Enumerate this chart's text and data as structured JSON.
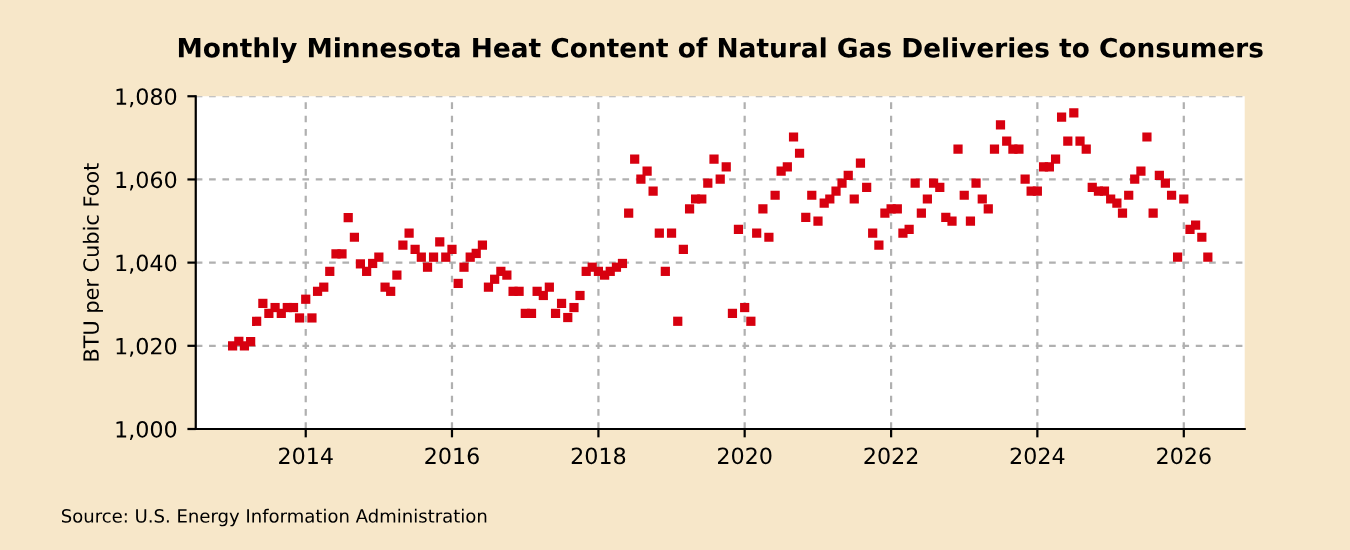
{
  "chart_data": {
    "type": "scatter",
    "title": "Monthly Minnesota Heat Content of Natural Gas Deliveries to Consumers",
    "ylabel": "BTU per Cubic Foot",
    "annotations": [
      "Source: U.S. Energy Information Administration"
    ],
    "x": [
      "2013-01",
      "2013-02",
      "2013-03",
      "2013-04",
      "2013-05",
      "2013-06",
      "2013-07",
      "2013-08",
      "2013-09",
      "2013-10",
      "2013-11",
      "2013-12",
      "2014-01",
      "2014-02",
      "2014-03",
      "2014-04",
      "2014-05",
      "2014-06",
      "2014-07",
      "2014-08",
      "2014-09",
      "2014-10",
      "2014-11",
      "2014-12",
      "2015-01",
      "2015-02",
      "2015-03",
      "2015-04",
      "2015-05",
      "2015-06",
      "2015-07",
      "2015-08",
      "2015-09",
      "2015-10",
      "2015-11",
      "2015-12",
      "2016-01",
      "2016-02",
      "2016-03",
      "2016-04",
      "2016-05",
      "2016-06",
      "2016-07",
      "2016-08",
      "2016-09",
      "2016-10",
      "2016-11",
      "2016-12",
      "2017-01",
      "2017-02",
      "2017-03",
      "2017-04",
      "2017-05",
      "2017-06",
      "2017-07",
      "2017-08",
      "2017-09",
      "2017-10",
      "2017-11",
      "2017-12",
      "2018-01",
      "2018-02",
      "2018-03",
      "2018-04",
      "2018-05",
      "2018-06",
      "2018-07",
      "2018-08",
      "2018-09",
      "2018-10",
      "2018-11",
      "2018-12",
      "2019-01",
      "2019-02",
      "2019-03",
      "2019-04",
      "2019-05",
      "2019-06",
      "2019-07",
      "2019-08",
      "2019-09",
      "2019-10",
      "2019-11",
      "2019-12",
      "2020-01",
      "2020-02",
      "2020-03",
      "2020-04",
      "2020-05",
      "2020-06",
      "2020-07",
      "2020-08",
      "2020-09",
      "2020-10",
      "2020-11",
      "2020-12",
      "2021-01",
      "2021-02",
      "2021-03",
      "2021-04",
      "2021-05",
      "2021-06",
      "2021-07",
      "2021-08",
      "2021-09",
      "2021-10",
      "2021-11",
      "2021-12",
      "2022-01",
      "2022-02",
      "2022-03",
      "2022-04",
      "2022-05",
      "2022-06",
      "2022-07",
      "2022-08",
      "2022-09",
      "2022-10",
      "2022-11",
      "2022-12",
      "2023-01",
      "2023-02",
      "2023-03",
      "2023-04",
      "2023-05",
      "2023-06",
      "2023-07",
      "2023-08",
      "2023-09",
      "2023-10",
      "2023-11",
      "2023-12",
      "2024-01",
      "2024-02",
      "2024-03",
      "2024-04",
      "2024-05",
      "2024-06",
      "2024-07",
      "2024-08",
      "2024-09",
      "2024-10",
      "2024-11",
      "2024-12",
      "2025-01",
      "2025-02",
      "2025-03",
      "2025-04",
      "2025-05",
      "2025-06",
      "2025-07",
      "2025-08",
      "2025-09",
      "2025-10",
      "2025-11",
      "2025-12",
      "2026-01",
      "2026-02",
      "2026-03",
      "2026-04",
      "2026-05"
    ],
    "series": [
      {
        "color": "#d7000f",
        "values": [
          1020.0,
          1021.1,
          1020.0,
          1021.0,
          1025.9,
          1030.2,
          1027.8,
          1029.2,
          1027.8,
          1029.2,
          1029.2,
          1026.7,
          1031.2,
          1026.7,
          1033.1,
          1034.1,
          1037.9,
          1042.1,
          1042.1,
          1050.8,
          1046.1,
          1039.7,
          1037.9,
          1039.8,
          1041.3,
          1034.1,
          1033.1,
          1037.0,
          1044.2,
          1047.1,
          1043.2,
          1041.3,
          1038.9,
          1041.3,
          1045.0,
          1041.3,
          1043.2,
          1035.0,
          1038.9,
          1041.3,
          1042.2,
          1044.2,
          1034.1,
          1036.0,
          1037.9,
          1037.0,
          1033.1,
          1033.1,
          1027.8,
          1027.8,
          1033.1,
          1032.1,
          1034.1,
          1027.8,
          1030.2,
          1026.8,
          1029.2,
          1032.1,
          1037.9,
          1038.9,
          1037.9,
          1037.0,
          1037.9,
          1038.9,
          1039.8,
          1051.9,
          1064.9,
          1060.1,
          1062.0,
          1057.2,
          1047.1,
          1037.9,
          1047.1,
          1025.9,
          1043.2,
          1052.9,
          1055.3,
          1055.3,
          1059.1,
          1064.9,
          1060.1,
          1063.0,
          1027.8,
          1048.0,
          1029.2,
          1025.9,
          1047.1,
          1052.9,
          1046.1,
          1056.2,
          1062.0,
          1063.0,
          1070.2,
          1066.3,
          1050.9,
          1056.2,
          1050.0,
          1054.3,
          1055.3,
          1057.2,
          1059.1,
          1061.0,
          1055.3,
          1063.9,
          1058.1,
          1047.1,
          1044.2,
          1051.9,
          1052.9,
          1052.9,
          1047.1,
          1048.0,
          1059.1,
          1051.9,
          1055.3,
          1059.1,
          1058.1,
          1050.9,
          1050.0,
          1067.3,
          1056.2,
          1050.0,
          1059.1,
          1055.3,
          1052.9,
          1067.3,
          1073.1,
          1069.2,
          1067.3,
          1067.3,
          1060.1,
          1057.2,
          1057.2,
          1063.0,
          1063.0,
          1064.9,
          1075.0,
          1069.2,
          1076.0,
          1069.2,
          1067.3,
          1058.1,
          1057.2,
          1057.2,
          1055.3,
          1054.3,
          1051.9,
          1056.2,
          1060.1,
          1062.0,
          1070.2,
          1051.9,
          1061.0,
          1059.1,
          1056.2,
          1041.3,
          1055.3,
          1048.0,
          1049.0,
          1046.1,
          1041.3
        ]
      }
    ],
    "xlim": [
      "2012-07",
      "2026-11"
    ],
    "xticks": [
      "2014",
      "2016",
      "2018",
      "2020",
      "2022",
      "2024",
      "2026"
    ],
    "ylim": [
      1000,
      1080
    ],
    "yticks": [
      {
        "value": 1000,
        "label": "1,000"
      },
      {
        "value": 1020,
        "label": "1,020"
      },
      {
        "value": 1040,
        "label": "1,040"
      },
      {
        "value": 1060,
        "label": "1,060"
      },
      {
        "value": 1080,
        "label": "1,080"
      }
    ],
    "grid": true,
    "marker": "square"
  }
}
